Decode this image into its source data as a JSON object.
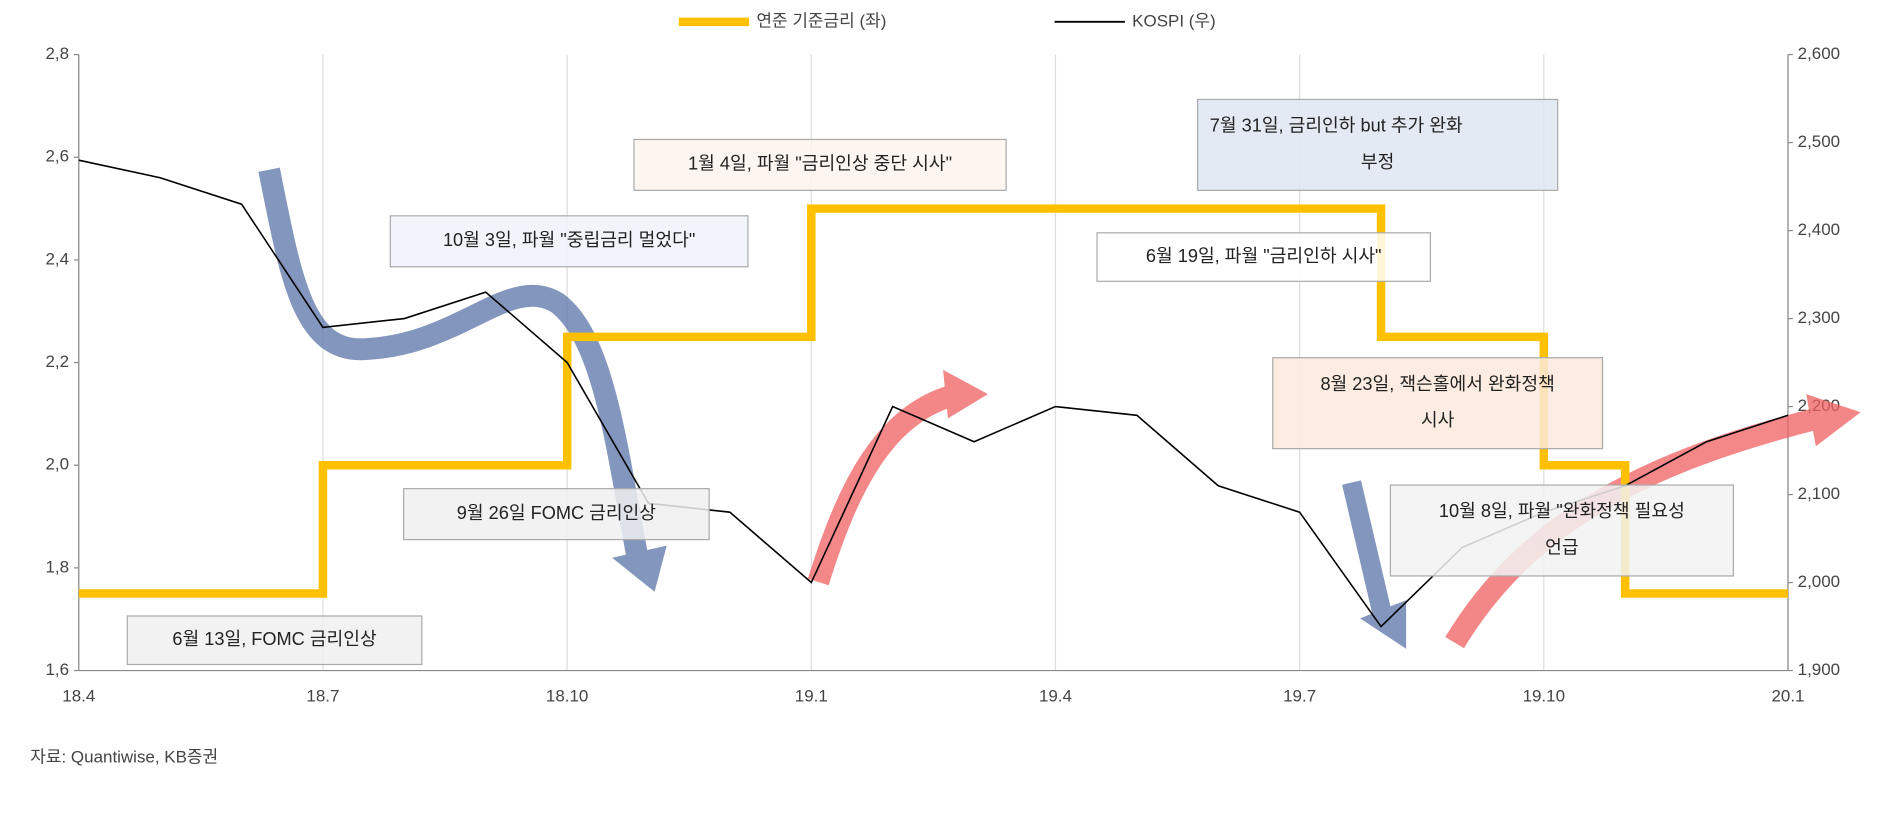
{
  "chart_data": {
    "type": "line",
    "x": [
      "2018-04",
      "2018-05",
      "2018-06",
      "2018-07",
      "2018-08",
      "2018-09",
      "2018-10",
      "2018-11",
      "2018-12",
      "2019-01",
      "2019-02",
      "2019-03",
      "2019-04",
      "2019-05",
      "2019-06",
      "2019-07",
      "2019-08",
      "2019-09",
      "2019-10",
      "2019-11",
      "2019-12",
      "2020-01"
    ],
    "xticks": [
      {
        "value": "2018-04",
        "label": "18.4"
      },
      {
        "value": "2018-07",
        "label": "18.7"
      },
      {
        "value": "2018-10",
        "label": "18.10"
      },
      {
        "value": "2019-01",
        "label": "19.1"
      },
      {
        "value": "2019-04",
        "label": "19.4"
      },
      {
        "value": "2019-07",
        "label": "19.7"
      },
      {
        "value": "2019-10",
        "label": "19.10"
      },
      {
        "value": "2020-01",
        "label": "20.1"
      }
    ],
    "series": [
      {
        "name": "연준 기준금리 (좌)",
        "color": "#ffc000",
        "step": true,
        "values": [
          1.75,
          1.75,
          1.75,
          2.0,
          2.0,
          2.0,
          2.25,
          2.25,
          2.25,
          2.5,
          2.5,
          2.5,
          2.5,
          2.5,
          2.5,
          2.5,
          2.25,
          2.25,
          2.0,
          1.75,
          1.75,
          1.75
        ]
      },
      {
        "name": "KOSPI (우)",
        "color": "#000000",
        "axis": "y2",
        "values": [
          2480,
          2460,
          2430,
          2290,
          2300,
          2330,
          2250,
          2090,
          2080,
          2000,
          2200,
          2160,
          2200,
          2190,
          2110,
          2080,
          1950,
          2040,
          2080,
          2110,
          2160,
          2190
        ]
      }
    ],
    "ylim": [
      1.6,
      2.8
    ],
    "yticks": [
      {
        "value": 1.6,
        "label": "1,6"
      },
      {
        "value": 1.8,
        "label": "1,8"
      },
      {
        "value": 2.0,
        "label": "2,0"
      },
      {
        "value": 2.2,
        "label": "2,2"
      },
      {
        "value": 2.4,
        "label": "2,4"
      },
      {
        "value": 2.6,
        "label": "2,6"
      },
      {
        "value": 2.8,
        "label": "2,8"
      }
    ],
    "y2lim": [
      1900,
      2600
    ],
    "y2ticks": [
      {
        "value": 1900,
        "label": "1,900"
      },
      {
        "value": 2000,
        "label": "2,000"
      },
      {
        "value": 2100,
        "label": "2,100"
      },
      {
        "value": 2200,
        "label": "2,200"
      },
      {
        "value": 2300,
        "label": "2,300"
      },
      {
        "value": 2400,
        "label": "2,400"
      },
      {
        "value": 2500,
        "label": "2,500"
      },
      {
        "value": 2600,
        "label": "2,600"
      }
    ],
    "grid": true,
    "legend": "top",
    "annotations": [
      {
        "lines": [
          "1월 4일, 파월 \"금리인상 중단 시사\""
        ]
      },
      {
        "lines": [
          "10월 3일, 파월 \"중립금리 멀었다\""
        ]
      },
      {
        "lines": [
          "7월 31일, 금리인하 but 추가 완화",
          "부정"
        ]
      },
      {
        "lines": [
          "6월 19일, 파월 \"금리인하 시사\""
        ]
      },
      {
        "lines": [
          "8월 23일, 잭슨홀에서 완화정책",
          "시사"
        ]
      },
      {
        "lines": [
          "9월 26일 FOMC 금리인상"
        ]
      },
      {
        "lines": [
          "10월 8일, 파월 \"완화정책 필요성",
          "언급"
        ]
      },
      {
        "lines": [
          "6월 13일, FOMC 금리인상"
        ]
      }
    ],
    "source": "자료: Quantiwise, KB증권"
  }
}
